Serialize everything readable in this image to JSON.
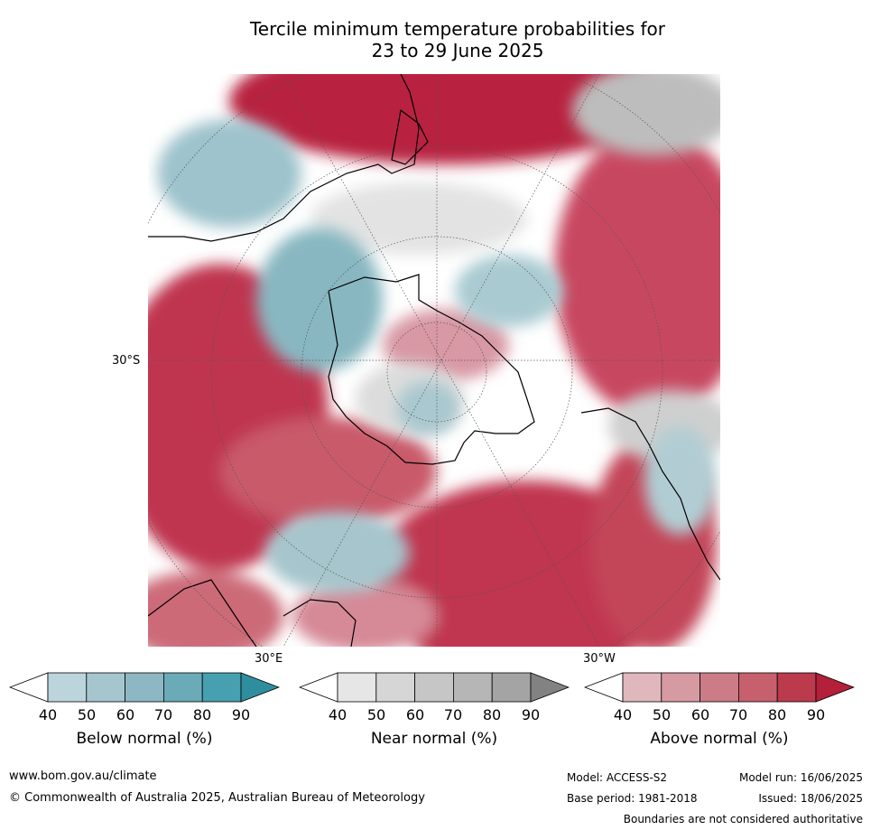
{
  "title": {
    "line1": "Tercile minimum temperature probabilities for",
    "line2": "23 to 29 June 2025"
  },
  "map": {
    "lat_label": "30°S",
    "lon_label_east": "30°E",
    "lon_label_west": "30°W"
  },
  "legend": {
    "bars": [
      {
        "label": "Below normal (%)",
        "ticks": [
          "40",
          "50",
          "60",
          "70",
          "80",
          "90"
        ],
        "colors": [
          "#ffffff",
          "#bcd4db",
          "#a5c6ce",
          "#8db8c3",
          "#6aabb7",
          "#47a0b0",
          "#2f8e9e"
        ]
      },
      {
        "label": "Near normal (%)",
        "ticks": [
          "40",
          "50",
          "60",
          "70",
          "80",
          "90"
        ],
        "colors": [
          "#ffffff",
          "#e6e6e6",
          "#d6d6d6",
          "#c6c6c6",
          "#b6b6b6",
          "#a4a4a4",
          "#828282"
        ]
      },
      {
        "label": "Above normal (%)",
        "ticks": [
          "40",
          "50",
          "60",
          "70",
          "80",
          "90"
        ],
        "colors": [
          "#ffffff",
          "#e0b7bd",
          "#d69aa2",
          "#cc7c87",
          "#c6606d",
          "#bb3b4d",
          "#b41f3a"
        ]
      }
    ]
  },
  "footer": {
    "url": "www.bom.gov.au/climate",
    "copyright": "© Commonwealth of Australia 2025, Australian Bureau of Meteorology",
    "model": "Model: ACCESS-S2",
    "base_period": "Base period: 1981-2018",
    "model_run": "Model run: 16/06/2025",
    "issued": "Issued: 18/06/2025",
    "disclaimer": "Boundaries are not considered authoritative"
  }
}
